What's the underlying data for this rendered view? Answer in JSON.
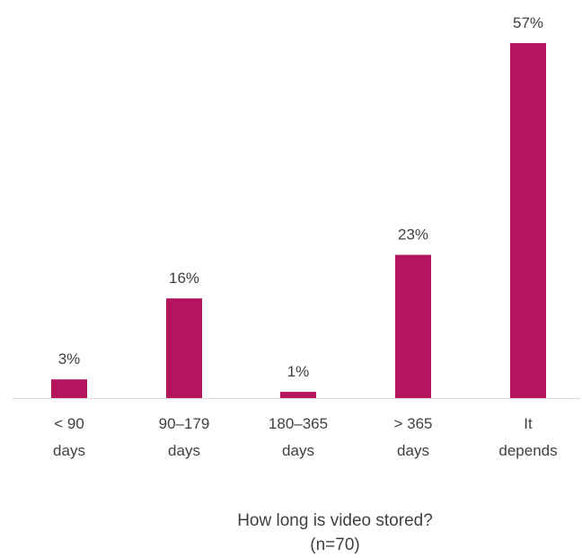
{
  "chart_data": {
    "type": "bar",
    "categories": [
      [
        "< 90",
        "days"
      ],
      [
        "90–179",
        "days"
      ],
      [
        "180–365",
        "days"
      ],
      [
        "> 365",
        "days"
      ],
      [
        "It",
        "depends"
      ]
    ],
    "values": [
      3,
      16,
      1,
      23,
      57
    ],
    "data_labels": [
      "3%",
      "16%",
      "1%",
      "23%",
      "57%"
    ],
    "title": [
      "How long is video stored?",
      "(n=70)"
    ],
    "xlabel": "",
    "ylabel": "",
    "ylim": [
      0,
      57
    ],
    "grid": false,
    "legend": "none",
    "colors": {
      "bar": "#b5145f",
      "axis": "#d9d9d9",
      "text": "#404040"
    }
  }
}
